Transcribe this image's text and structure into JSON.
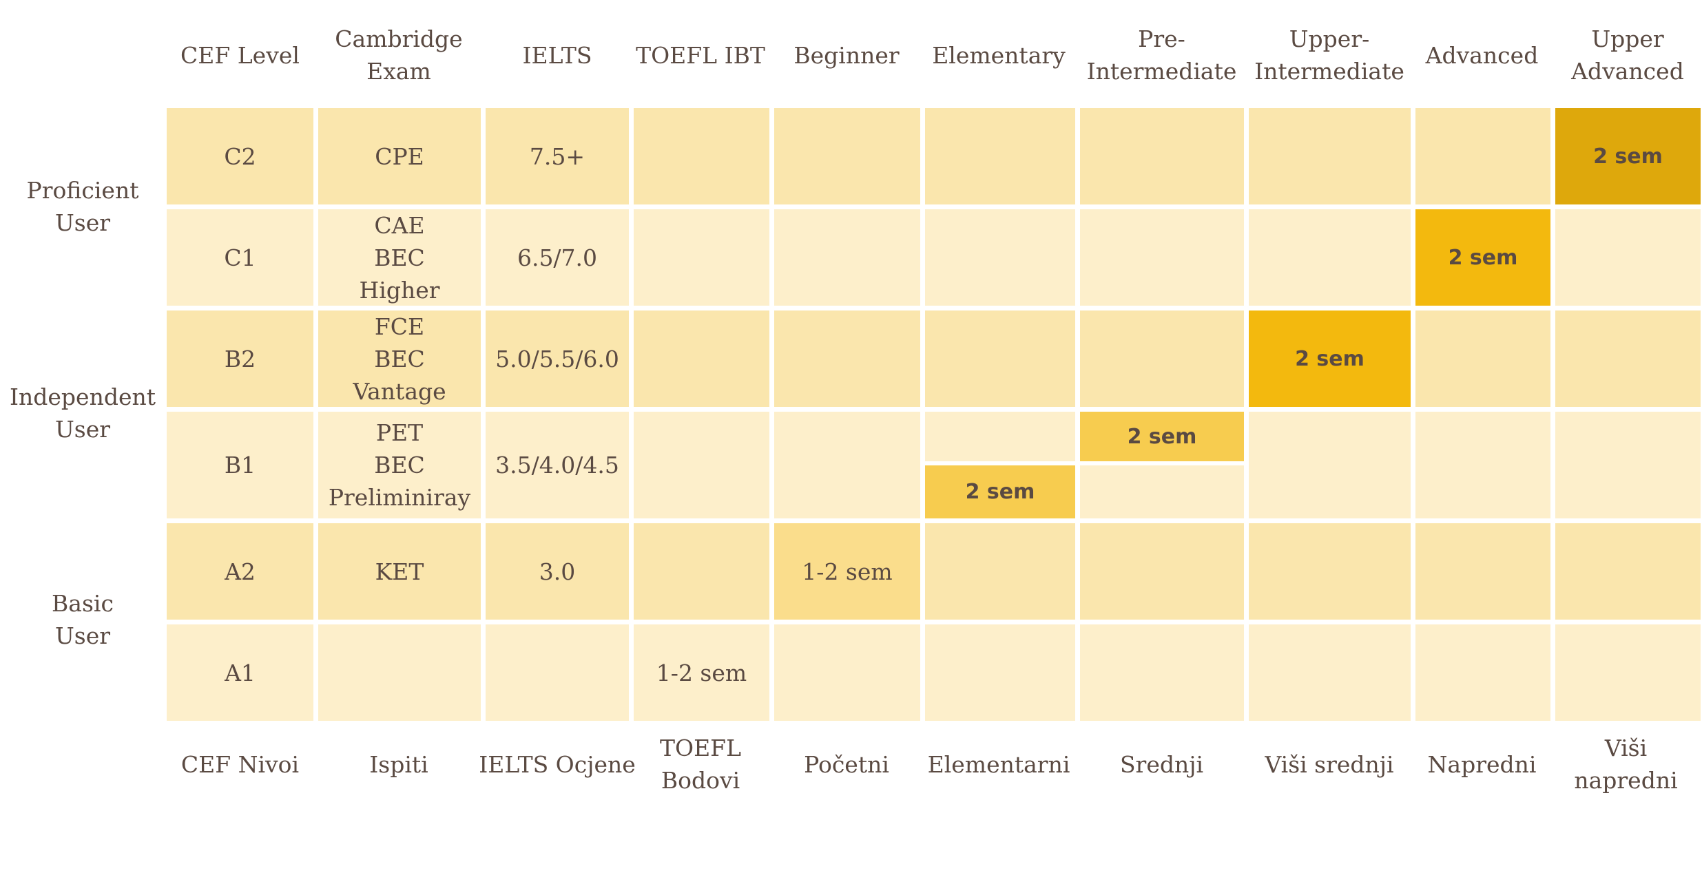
{
  "header": {
    "columns": [
      "CEF Level",
      "Cambridge Exam",
      "IELTS",
      "TOEFL IBT",
      "Beginner",
      "Elementary",
      "Pre-Intermediate",
      "Upper-Intermediate",
      "Advanced",
      "Upper Advanced"
    ],
    "cambridge_line1": "Cambridge",
    "cambridge_line2": "Exam",
    "pre_line1": "Pre-",
    "pre_line2": "Intermediate",
    "upper_int_line1": "Upper-",
    "upper_int_line2": "Intermediate",
    "upper_adv_line1": "Upper",
    "upper_adv_line2": "Advanced"
  },
  "groups": {
    "proficient_line1": "Proficient",
    "proficient_line2": "User",
    "independent_line1": "Independent",
    "independent_line2": "User",
    "basic_line1": "Basic",
    "basic_line2": "User"
  },
  "rows": {
    "c2": {
      "level": "C2",
      "exam": "CPE",
      "ielts": "7.5+",
      "course": "2 sem"
    },
    "c1": {
      "level": "C1",
      "exam1": "CAE",
      "exam2": "BEC",
      "exam3": "Higher",
      "ielts": "6.5/7.0",
      "course": "2 sem"
    },
    "b2": {
      "level": "B2",
      "exam1": "FCE",
      "exam2": "BEC",
      "exam3": "Vantage",
      "ielts": "5.0/5.5/6.0",
      "course": "2 sem"
    },
    "b1": {
      "level": "B1",
      "exam1": "PET",
      "exam2": "BEC",
      "exam3": "Preliminiray",
      "ielts": "3.5/4.0/4.5",
      "course_pre": "2 sem",
      "course_elem": "2 sem"
    },
    "a2": {
      "level": "A2",
      "exam": "KET",
      "ielts": "3.0",
      "course": "1-2 sem"
    },
    "a1": {
      "level": "A1",
      "toefl": "1-2 sem"
    }
  },
  "footer": {
    "cef": "CEF Nivoi",
    "ispiti": "Ispiti",
    "ielts": "IELTS Ocjene",
    "toefl_line1": "TOEFL",
    "toefl_line2": "Bodovi",
    "pocetni": "Početni",
    "elementarni": "Elementarni",
    "srednji": "Srednji",
    "visi_srednji": "Viši srednji",
    "napredni": "Napredni",
    "visi_napredni": "Viši napredni"
  },
  "colors": {
    "cell_dark": "#fae6ad",
    "cell_light": "#fdefcb",
    "highlight_elementary_pre": "#f7cc4f",
    "highlight_upper_int_adv": "#f3b90e",
    "highlight_upper_advanced": "#dea80c",
    "highlight_beginner": "#fadd8c",
    "text": "#5a4a42"
  }
}
